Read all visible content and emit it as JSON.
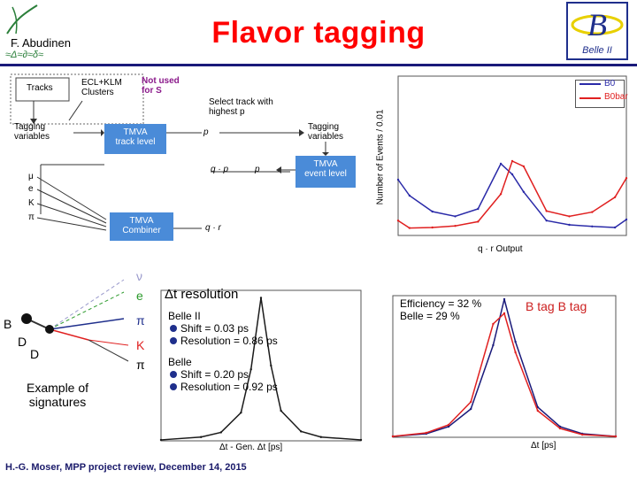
{
  "slide": {
    "title": "Flavor tagging",
    "author": "F. Abudinen",
    "footer": "H.-G. Moser, MPP project review, December 14, 2015",
    "logo_text": "Belle II"
  },
  "flow_diagram": {
    "tracks": "Tracks",
    "ecl_klm": "ECL+KLM\nClusters",
    "not_used": "Not used\nfor S",
    "select_track": "Select track with\nhighest p",
    "tagging_vars_left": "Tagging\nvariables",
    "tmva_track": "TMVA\ntrack level",
    "p_track": "p",
    "tagging_vars_right": "Tagging\nvariables",
    "q_p_cat": "q · p",
    "p_cat": "p",
    "tmva_event": "TMVA\nevent level",
    "particles": [
      "μ",
      "e",
      "K",
      "π"
    ],
    "tmva_combiner": "TMVA\nCombiner",
    "q_r_combined": "q · r"
  },
  "signature": {
    "caption": "Example of\nsignatures",
    "labels": [
      "B",
      "D",
      "D",
      "K",
      "π",
      "π",
      "e",
      "ν"
    ]
  },
  "resolution_plot": {
    "heading": "Δt resolution",
    "belle2": "Belle II",
    "belle2_shift": "Shift = 0.03 ps",
    "belle2_res": "Resolution = 0.86 ps",
    "belle": "Belle",
    "belle_shift": "Shift = 0.20 ps",
    "belle_res": "Resolution = 0.92 ps",
    "xlabel": "Δt - Gen. Δt [ps]"
  },
  "deltat_plot": {
    "efficiency": "Efficiency = 32 %",
    "belle": "Belle = 29 %",
    "tag_label": "B tag B tag",
    "xlabel": "Δt [ps]"
  },
  "chart_data": [
    {
      "type": "line",
      "xlabel": "q · r Output",
      "ylabel": "Number of Events / 0.01",
      "ylim": [
        0,
        3000
      ],
      "xlim": [
        -1,
        1
      ],
      "series": [
        {
          "name": "B0",
          "color": "#2a2aa8",
          "x": [
            -1,
            -0.9,
            -0.7,
            -0.5,
            -0.3,
            -0.1,
            0,
            0.1,
            0.3,
            0.5,
            0.7,
            0.9,
            1
          ],
          "y": [
            1050,
            750,
            450,
            360,
            500,
            1350,
            1150,
            820,
            280,
            200,
            170,
            150,
            300
          ]
        },
        {
          "name": "B0bar",
          "color": "#e02020",
          "x": [
            -1,
            -0.9,
            -0.7,
            -0.5,
            -0.3,
            -0.1,
            0,
            0.1,
            0.3,
            0.5,
            0.7,
            0.9,
            1
          ],
          "y": [
            280,
            140,
            150,
            180,
            260,
            780,
            1400,
            1300,
            460,
            360,
            440,
            720,
            1080
          ]
        }
      ]
    },
    {
      "type": "line",
      "xlabel": "Δt - Gen. Δt [ps]",
      "ylabel": "",
      "ylim": [
        0,
        800
      ],
      "xlim": [
        -10,
        10
      ],
      "series": [
        {
          "name": "Belle II",
          "color": "#1a1a1a",
          "x": [
            -10,
            -6,
            -4,
            -2,
            -1,
            0,
            1,
            2,
            4,
            6,
            10
          ],
          "y": [
            5,
            20,
            45,
            150,
            380,
            760,
            400,
            160,
            50,
            20,
            5
          ]
        }
      ]
    },
    {
      "type": "line",
      "xlabel": "Δt [ps]",
      "ylabel": "",
      "ylim": [
        0,
        800
      ],
      "xlim": [
        -10,
        10
      ],
      "series": [
        {
          "name": "Belle",
          "color": "#1a1a7a",
          "x": [
            -10,
            -7,
            -5,
            -3,
            -1,
            0,
            1,
            3,
            5,
            7,
            10
          ],
          "y": [
            5,
            20,
            60,
            160,
            520,
            780,
            540,
            170,
            60,
            20,
            5
          ]
        },
        {
          "name": "Belle II",
          "color": "#e02020",
          "x": [
            -10,
            -7,
            -5,
            -3,
            -1,
            0,
            1,
            3,
            5,
            7,
            10
          ],
          "y": [
            5,
            25,
            70,
            200,
            640,
            700,
            480,
            150,
            50,
            15,
            5
          ]
        }
      ]
    }
  ]
}
